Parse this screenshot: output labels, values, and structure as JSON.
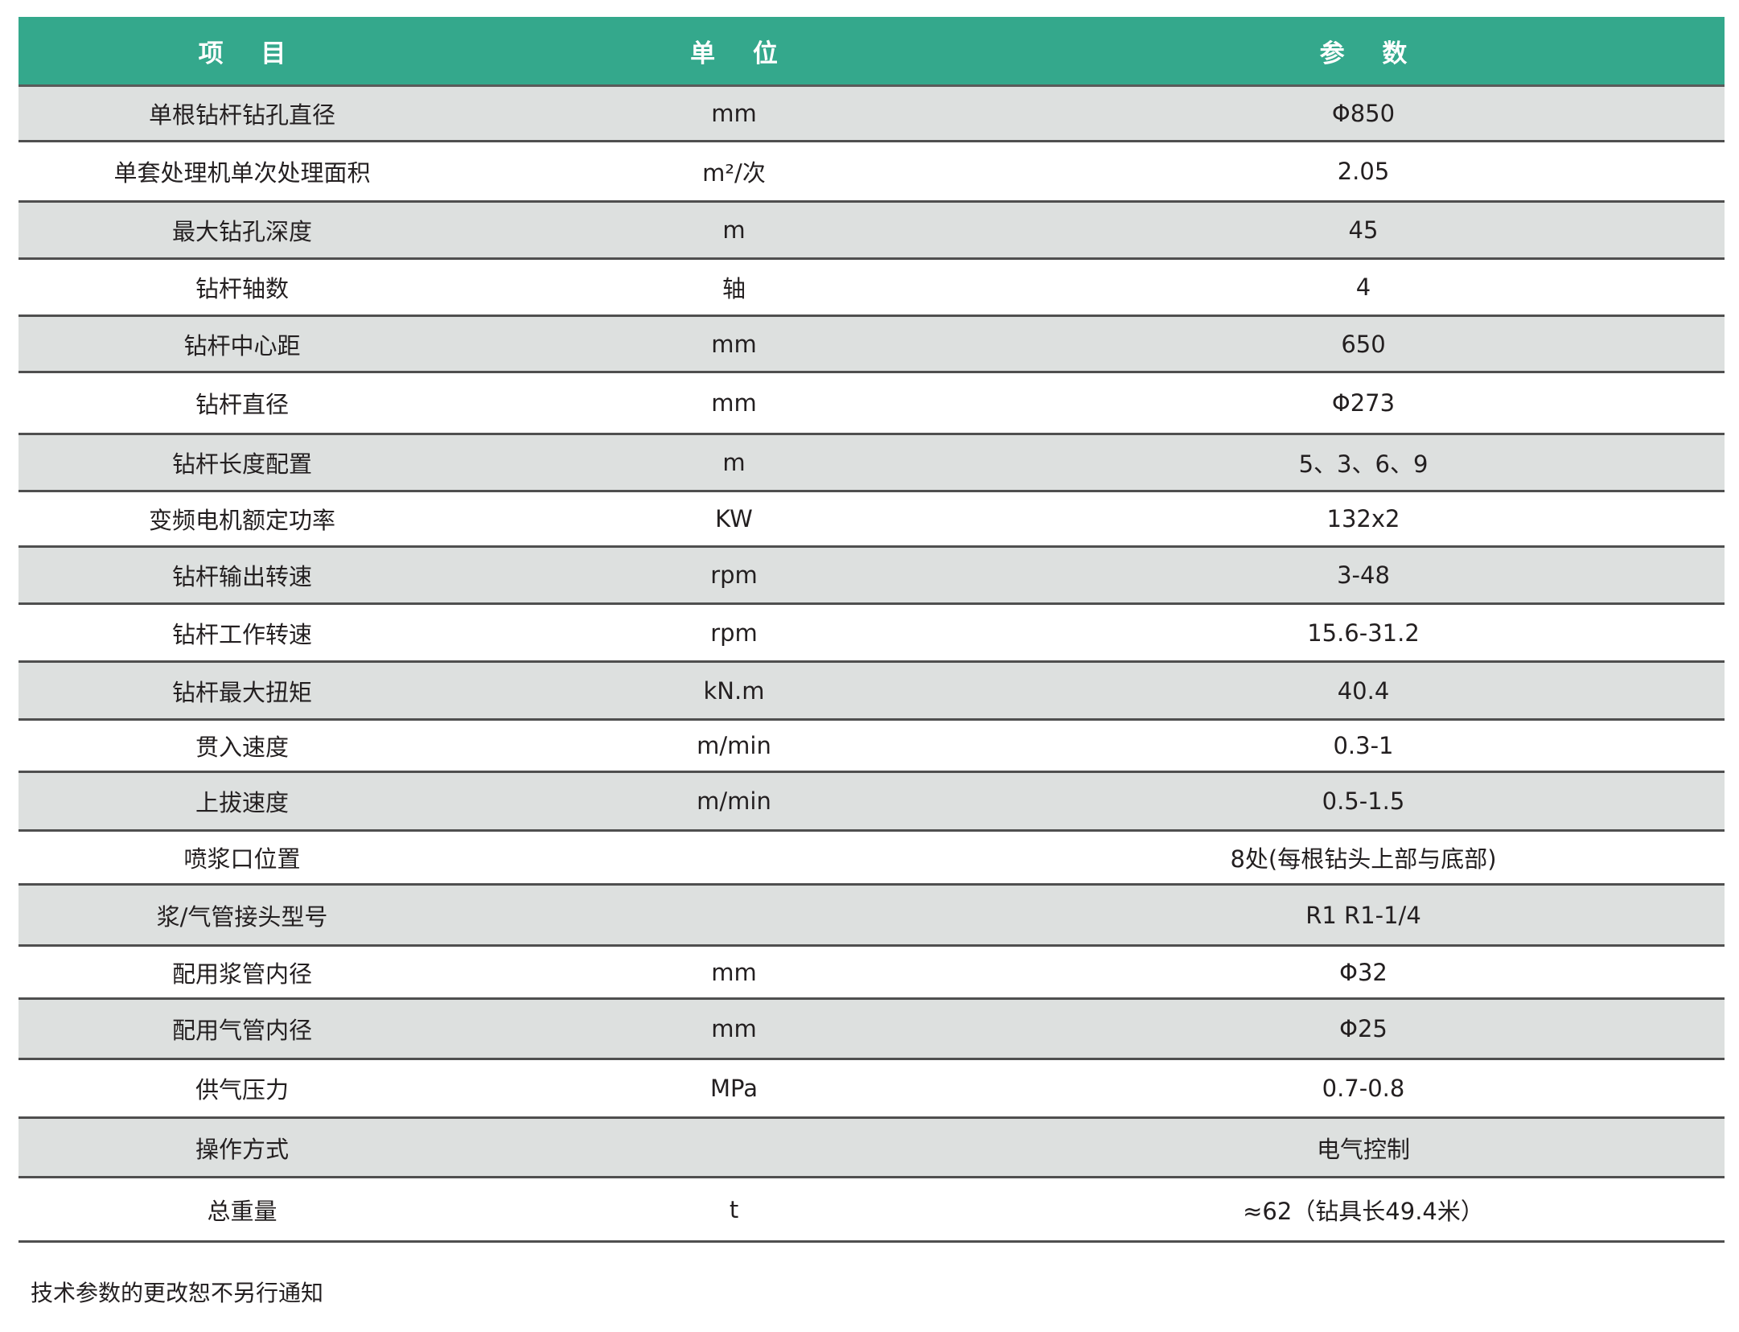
{
  "header": {
    "item": "项 目",
    "unit": "单 位",
    "value": "参 数"
  },
  "colors": {
    "header_bg": "#34a88c",
    "stripe": "#dde0df"
  },
  "rows": [
    {
      "item": "单根钻杆钻孔直径",
      "unit": "mm",
      "value": "Φ850"
    },
    {
      "item": "单套处理机单次处理面积",
      "unit": "m²/次",
      "value": "2.05"
    },
    {
      "item": "最大钻孔深度",
      "unit": "m",
      "value": "45"
    },
    {
      "item": "钻杆轴数",
      "unit": "轴",
      "value": "4"
    },
    {
      "item": "钻杆中心距",
      "unit": "mm",
      "value": "650"
    },
    {
      "item": "钻杆直径",
      "unit": "mm",
      "value": "Φ273"
    },
    {
      "item": "钻杆长度配置",
      "unit": "m",
      "value": "5、3、6、9"
    },
    {
      "item": "变频电机额定功率",
      "unit": "KW",
      "value": "132x2"
    },
    {
      "item": "钻杆输出转速",
      "unit": "rpm",
      "value": "3-48"
    },
    {
      "item": "钻杆工作转速",
      "unit": "rpm",
      "value": "15.6-31.2"
    },
    {
      "item": "钻杆最大扭矩",
      "unit": "kN.m",
      "value": "40.4"
    },
    {
      "item": "贯入速度",
      "unit": "m/min",
      "value": "0.3-1"
    },
    {
      "item": "上拔速度",
      "unit": "m/min",
      "value": "0.5-1.5"
    },
    {
      "item": "喷浆口位置",
      "unit": "",
      "value": "8处(每根钻头上部与底部)"
    },
    {
      "item": "浆/气管接头型号",
      "unit": "",
      "value": "R1 R1-1/4"
    },
    {
      "item": "配用浆管内径",
      "unit": "mm",
      "value": "Φ32"
    },
    {
      "item": "配用气管内径",
      "unit": "mm",
      "value": "Φ25"
    },
    {
      "item": "供气压力",
      "unit": "MPa",
      "value": "0.7-0.8"
    },
    {
      "item": "操作方式",
      "unit": "",
      "value": "电气控制"
    },
    {
      "item": "总重量",
      "unit": "t",
      "value": "≈62（钻具长49.4米）"
    }
  ],
  "footnote": "技术参数的更改恕不另行通知"
}
